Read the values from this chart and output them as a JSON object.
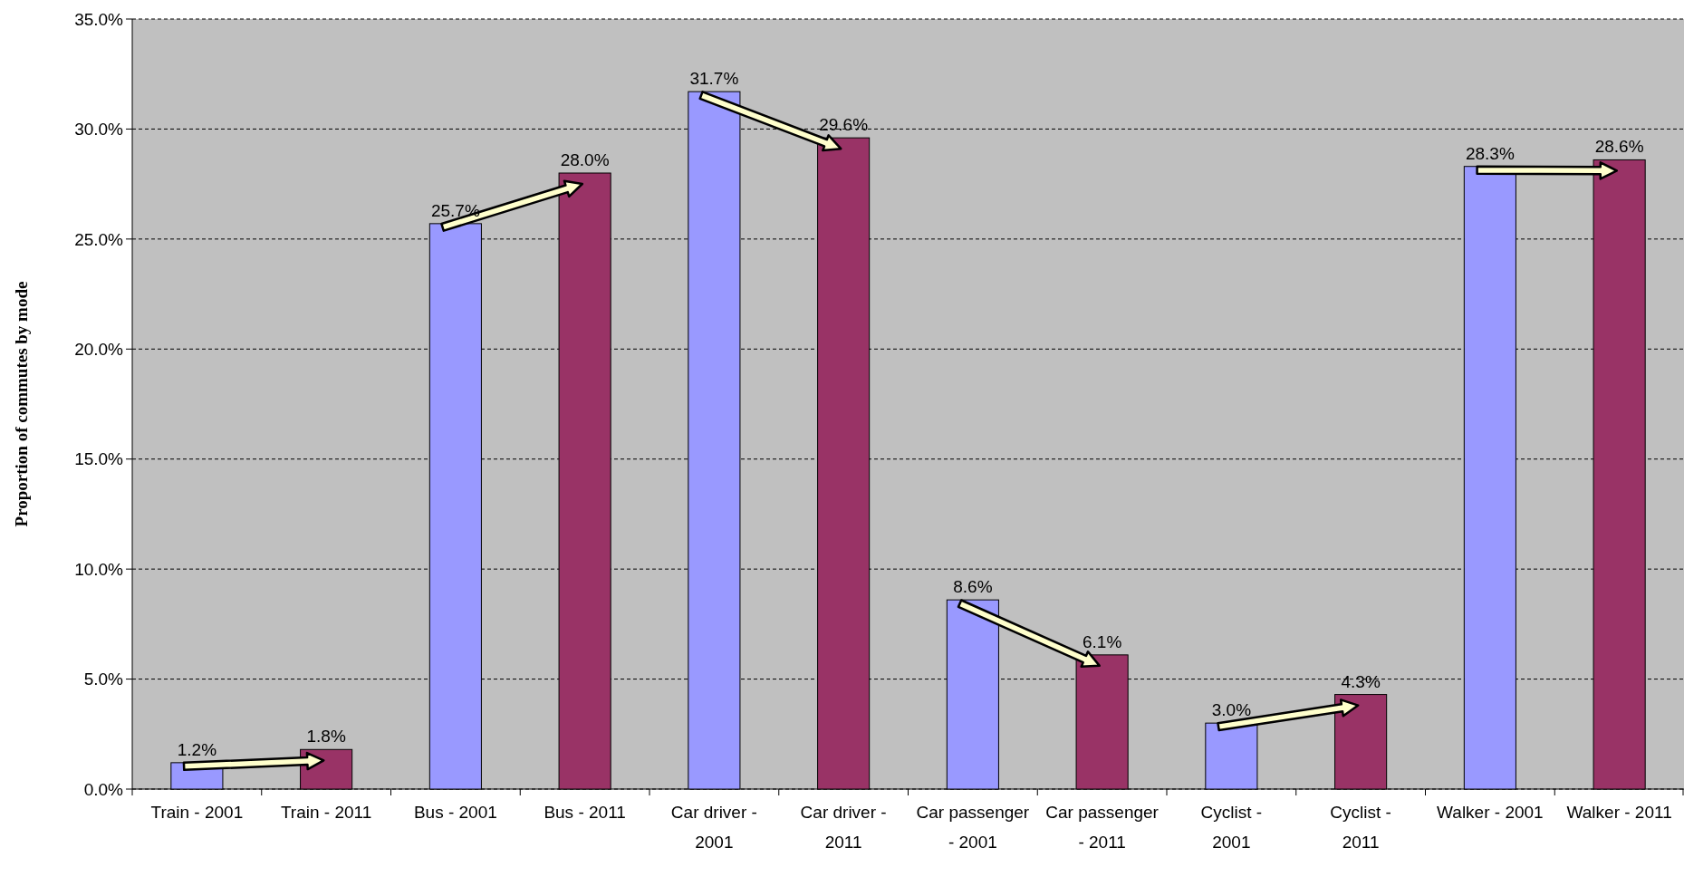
{
  "chart_data": {
    "type": "bar",
    "ylabel": "Proportion of commutes by mode",
    "categories": [
      "Train - 2001",
      "Train - 2011",
      "Bus - 2001",
      "Bus  - 2011",
      "Car driver - 2001",
      "Car driver - 2011",
      "Car passenger - 2001",
      "Car passenger - 2011",
      "Cyclist - 2001",
      "Cyclist - 2011",
      "Walker - 2001",
      "Walker - 2011"
    ],
    "values": [
      1.2,
      1.8,
      25.7,
      28.0,
      31.7,
      29.6,
      8.6,
      6.1,
      3.0,
      4.3,
      28.3,
      28.6
    ],
    "colors": [
      "#9999ff",
      "#993366",
      "#9999ff",
      "#993366",
      "#9999ff",
      "#993366",
      "#9999ff",
      "#993366",
      "#9999ff",
      "#993366",
      "#9999ff",
      "#993366"
    ],
    "value_labels": [
      "1.2%",
      "1.8%",
      "25.7%",
      "28.0%",
      "31.7%",
      "29.6%",
      "8.6%",
      "6.1%",
      "3.0%",
      "4.3%",
      "28.3%",
      "28.6%"
    ],
    "ylim": [
      0,
      35
    ],
    "yticks": [
      {
        "value": 0,
        "label": "0.0%"
      },
      {
        "value": 5,
        "label": "5.0%"
      },
      {
        "value": 10,
        "label": "10.0%"
      },
      {
        "value": 15,
        "label": "15.0%"
      },
      {
        "value": 20,
        "label": "20.0%"
      },
      {
        "value": 25,
        "label": "25.0%"
      },
      {
        "value": 30,
        "label": "30.0%"
      },
      {
        "value": 35,
        "label": "35.0%"
      }
    ],
    "grid": "y"
  }
}
